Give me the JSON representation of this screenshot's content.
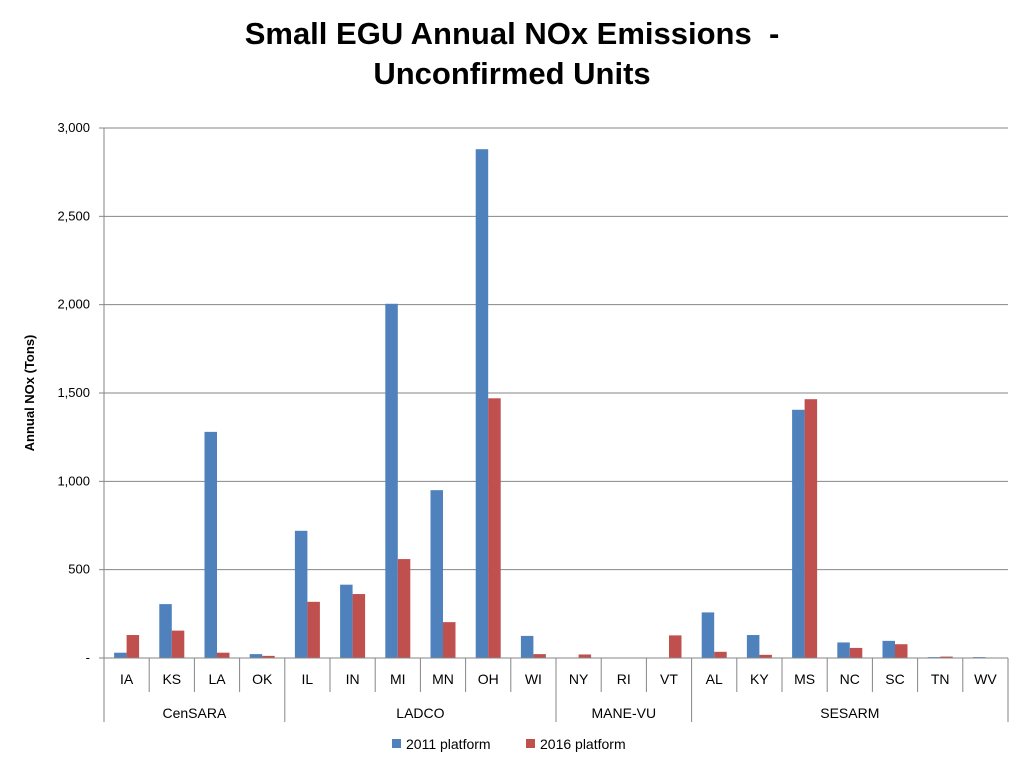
{
  "chart_data": {
    "type": "bar",
    "title": [
      "Small EGU Annual NOx Emissions  -",
      "Unconfirmed Units"
    ],
    "ylabel": "Annual NOx (Tons)",
    "xlabel": "",
    "ylim": [
      0,
      3000
    ],
    "yticks": [
      0,
      500,
      1000,
      1500,
      2000,
      2500,
      3000
    ],
    "ytick_labels": [
      "-",
      "500",
      "1,000",
      "1,500",
      "2,000",
      "2,500",
      "3,000"
    ],
    "grid": true,
    "legend_position": "bottom",
    "categories": [
      "IA",
      "KS",
      "LA",
      "OK",
      "IL",
      "IN",
      "MI",
      "MN",
      "OH",
      "WI",
      "NY",
      "RI",
      "VT",
      "AL",
      "KY",
      "MS",
      "NC",
      "SC",
      "TN",
      "WV"
    ],
    "groups": [
      {
        "name": "CenSARA",
        "count": 4
      },
      {
        "name": "LADCO",
        "count": 6
      },
      {
        "name": "MANE-VU",
        "count": 3
      },
      {
        "name": "SESARM",
        "count": 7
      }
    ],
    "series": [
      {
        "name": "2011 platform",
        "color": "#4F81BD",
        "values": [
          30,
          305,
          1280,
          22,
          720,
          415,
          2005,
          950,
          2880,
          125,
          0,
          0,
          0,
          258,
          130,
          1405,
          88,
          97,
          5,
          5
        ]
      },
      {
        "name": "2016 platform",
        "color": "#C0504D",
        "values": [
          130,
          155,
          30,
          12,
          318,
          362,
          560,
          203,
          1470,
          22,
          20,
          0,
          128,
          35,
          18,
          1465,
          57,
          78,
          8,
          0
        ]
      }
    ]
  }
}
